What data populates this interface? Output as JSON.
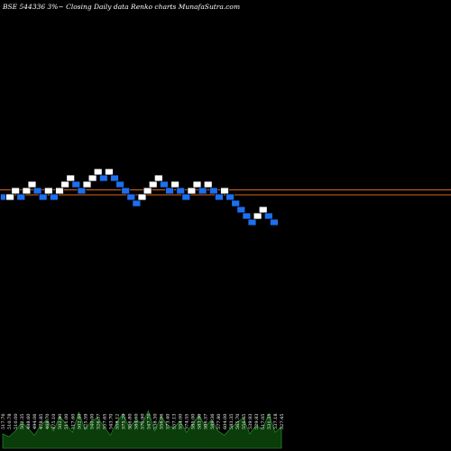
{
  "header": {
    "title": "BSE 544336  3%~  Closing Daily data  Renko  charts MunafaSutra.com"
  },
  "colors": {
    "background": "#000000",
    "up_brick": "#ffffff",
    "down_brick": "#1e6ff0",
    "brick_border": "#000000",
    "level_line": "#d2691e",
    "volume_fill": "#0a3d0a",
    "volume_edge": "#2e9e2e"
  },
  "chart_data": {
    "type": "renko",
    "box_size_percent": 3,
    "bricks": [
      {
        "level": 0,
        "direction": "down"
      },
      {
        "level": 0,
        "direction": "up"
      },
      {
        "level": 1,
        "direction": "up"
      },
      {
        "level": 0,
        "direction": "down"
      },
      {
        "level": 1,
        "direction": "up"
      },
      {
        "level": 2,
        "direction": "up"
      },
      {
        "level": 1,
        "direction": "down"
      },
      {
        "level": 0,
        "direction": "down"
      },
      {
        "level": 1,
        "direction": "up"
      },
      {
        "level": 0,
        "direction": "down"
      },
      {
        "level": 1,
        "direction": "up"
      },
      {
        "level": 2,
        "direction": "up"
      },
      {
        "level": 3,
        "direction": "up"
      },
      {
        "level": 2,
        "direction": "down"
      },
      {
        "level": 1,
        "direction": "down"
      },
      {
        "level": 2,
        "direction": "up"
      },
      {
        "level": 3,
        "direction": "up"
      },
      {
        "level": 4,
        "direction": "up"
      },
      {
        "level": 3,
        "direction": "down"
      },
      {
        "level": 4,
        "direction": "up"
      },
      {
        "level": 3,
        "direction": "down"
      },
      {
        "level": 2,
        "direction": "down"
      },
      {
        "level": 1,
        "direction": "down"
      },
      {
        "level": 0,
        "direction": "down"
      },
      {
        "level": -1,
        "direction": "down"
      },
      {
        "level": 0,
        "direction": "up"
      },
      {
        "level": 1,
        "direction": "up"
      },
      {
        "level": 2,
        "direction": "up"
      },
      {
        "level": 3,
        "direction": "up"
      },
      {
        "level": 2,
        "direction": "down"
      },
      {
        "level": 1,
        "direction": "down"
      },
      {
        "level": 2,
        "direction": "up"
      },
      {
        "level": 1,
        "direction": "down"
      },
      {
        "level": 0,
        "direction": "down"
      },
      {
        "level": 1,
        "direction": "up"
      },
      {
        "level": 2,
        "direction": "up"
      },
      {
        "level": 1,
        "direction": "down"
      },
      {
        "level": 2,
        "direction": "up"
      },
      {
        "level": 1,
        "direction": "down"
      },
      {
        "level": 0,
        "direction": "down"
      },
      {
        "level": 1,
        "direction": "up"
      },
      {
        "level": 0,
        "direction": "down"
      },
      {
        "level": -1,
        "direction": "down"
      },
      {
        "level": -2,
        "direction": "down"
      },
      {
        "level": -3,
        "direction": "down"
      },
      {
        "level": -4,
        "direction": "down"
      },
      {
        "level": -3,
        "direction": "up"
      },
      {
        "level": -2,
        "direction": "up"
      },
      {
        "level": -3,
        "direction": "down"
      },
      {
        "level": -4,
        "direction": "down"
      }
    ],
    "level_lines": [
      1,
      -0.15
    ],
    "volume": {
      "labels": [
        "517.76",
        "510.78",
        "510.00",
        "502.35",
        "488.60",
        "494.06",
        "478.85",
        "468.70",
        "475.10",
        "502.80",
        "511.00",
        "517.60",
        "502.40",
        "525.59",
        "540.00",
        "526.37",
        "557.65",
        "543.70",
        "558.12",
        "575.29",
        "566.80",
        "584.60",
        "570.90",
        "547.70",
        "538.30",
        "556.06",
        "573.40",
        "557.13",
        "554.00",
        "574.55",
        "585.00",
        "583.90",
        "596.57",
        "589.36",
        "577.80",
        "604.00",
        "583.35",
        "565.70",
        "556.65",
        "539.93",
        "529.83",
        "517.05",
        "531.35",
        "537.18",
        "527.45"
      ],
      "values": [
        10,
        8,
        12,
        18,
        14,
        9,
        16,
        20,
        12,
        22,
        17,
        11,
        25,
        13,
        19,
        21,
        15,
        9,
        18,
        24,
        14,
        20,
        17,
        26,
        12,
        22,
        16,
        14,
        19,
        11,
        17,
        23,
        15,
        20,
        12,
        9,
        14,
        18,
        21,
        10,
        16,
        13,
        24,
        11,
        15
      ]
    }
  }
}
